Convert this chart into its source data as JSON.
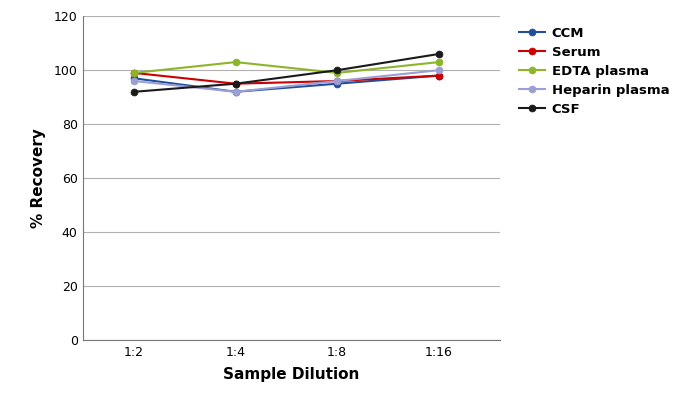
{
  "x_labels": [
    "1:2",
    "1:4",
    "1:8",
    "1:16"
  ],
  "x_values": [
    0,
    1,
    2,
    3
  ],
  "series": [
    {
      "name": "CCM",
      "color": "#1f4e9c",
      "values": [
        97,
        92,
        95,
        98
      ]
    },
    {
      "name": "Serum",
      "color": "#cc0000",
      "values": [
        99,
        95,
        96,
        98
      ]
    },
    {
      "name": "EDTA plasma",
      "color": "#8db52a",
      "values": [
        99,
        103,
        99,
        103
      ]
    },
    {
      "name": "Heparin plasma",
      "color": "#9b9fd4",
      "values": [
        96,
        92,
        96,
        100
      ]
    },
    {
      "name": "CSF",
      "color": "#1a1a1a",
      "values": [
        92,
        95,
        100,
        106
      ]
    }
  ],
  "ylabel": "% Recovery",
  "xlabel": "Sample Dilution",
  "ylim": [
    0,
    120
  ],
  "yticks": [
    0,
    20,
    40,
    60,
    80,
    100,
    120
  ],
  "bg_color": "#ffffff",
  "grid_color": "#b0b0b0",
  "marker": "o",
  "marker_size": 5,
  "linewidth": 1.5,
  "tick_fontsize": 9,
  "label_fontsize": 11,
  "legend_fontsize": 9.5
}
